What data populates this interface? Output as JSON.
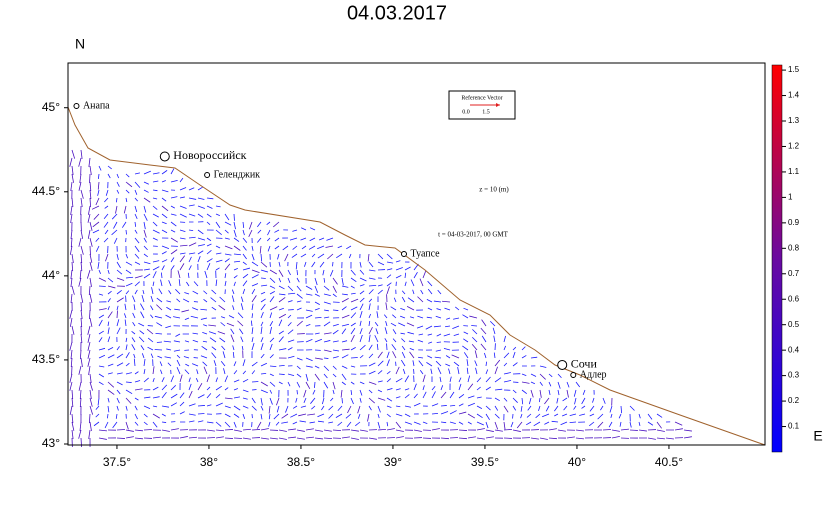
{
  "map": {
    "title": "04.03.2017",
    "y_axis_label": "N",
    "x_axis_label": "E",
    "xlim": [
      37.234,
      41.022
    ],
    "ylim": [
      42.994,
      45.266
    ],
    "xticks": [
      {
        "value": 37.5,
        "label": "37.5°"
      },
      {
        "value": 38,
        "label": "38°"
      },
      {
        "value": 38.5,
        "label": "38.5°"
      },
      {
        "value": 39,
        "label": "39°"
      },
      {
        "value": 39.5,
        "label": "39.5°"
      },
      {
        "value": 40,
        "label": "40°"
      },
      {
        "value": 40.5,
        "label": "40.5°"
      }
    ],
    "yticks": [
      {
        "value": 43,
        "label": "43°"
      },
      {
        "value": 43.5,
        "label": "43.5°"
      },
      {
        "value": 44,
        "label": "44°"
      },
      {
        "value": 44.5,
        "label": "44.5°"
      },
      {
        "value": 45,
        "label": "45°"
      }
    ],
    "cities": [
      {
        "name": "Анапа",
        "lon": 37.28,
        "lat": 45.01,
        "major": false
      },
      {
        "name": "Новороссийск",
        "lon": 37.76,
        "lat": 44.71,
        "major": true
      },
      {
        "name": "Геленджик",
        "lon": 37.99,
        "lat": 44.6,
        "major": false
      },
      {
        "name": "Туапсе",
        "lon": 39.06,
        "lat": 44.13,
        "major": false
      },
      {
        "name": "Сочи",
        "lon": 39.92,
        "lat": 43.47,
        "major": true
      },
      {
        "name": "Адлер",
        "lon": 39.98,
        "lat": 43.41,
        "major": false
      }
    ],
    "reference_vector": {
      "title": "Reference Vector",
      "min_label": "0.0",
      "max_label": "1.5"
    },
    "depth_note": "z = 10 (m)",
    "time_note": "t = 04-03-2017, 00 GMT",
    "colorbar": {
      "lim": [
        0,
        1.52
      ],
      "ticks": [
        0.1,
        0.2,
        0.3,
        0.4,
        0.5,
        0.6,
        0.7,
        0.8,
        0.9,
        1,
        1.1,
        1.2,
        1.3,
        1.4,
        1.5
      ]
    }
  }
}
